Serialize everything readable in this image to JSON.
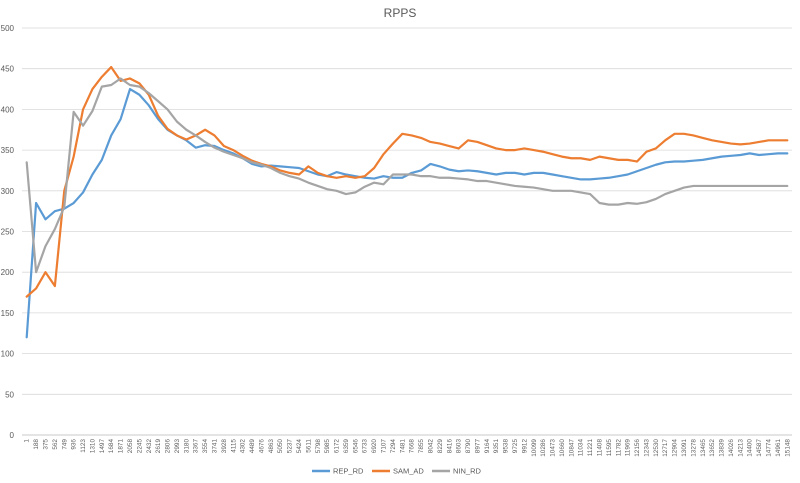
{
  "chart_data": {
    "type": "line",
    "title": "RPPS",
    "xlabel": "",
    "ylabel": "",
    "ylim": [
      0,
      500
    ],
    "yticks": [
      0,
      50,
      100,
      150,
      200,
      250,
      300,
      350,
      400,
      450,
      500
    ],
    "grid": "horizontal",
    "legend_position": "bottom",
    "categories": [
      "1",
      "188",
      "375",
      "562",
      "749",
      "936",
      "1123",
      "1310",
      "1497",
      "1684",
      "1871",
      "2058",
      "2245",
      "2432",
      "2619",
      "2806",
      "2993",
      "3180",
      "3367",
      "3554",
      "3741",
      "3928",
      "4115",
      "4302",
      "4489",
      "4676",
      "4863",
      "5050",
      "5237",
      "5424",
      "5611",
      "5798",
      "5985",
      "6172",
      "6359",
      "6546",
      "6733",
      "6920",
      "7107",
      "7294",
      "7481",
      "7668",
      "7855",
      "8042",
      "8229",
      "8416",
      "8603",
      "8790",
      "8977",
      "9164",
      "9351",
      "9538",
      "9725",
      "9912",
      "10099",
      "10286",
      "10473",
      "10660",
      "10847",
      "11034",
      "11221",
      "11408",
      "11595",
      "11782",
      "11969",
      "12156",
      "12343",
      "12530",
      "12717",
      "12904",
      "13091",
      "13278",
      "13465",
      "13652",
      "13839",
      "14026",
      "14213",
      "14400",
      "14587",
      "14774",
      "14961",
      "15148"
    ],
    "series": [
      {
        "name": "REP_RD",
        "color": "#5b9bd5",
        "values": [
          120,
          285,
          265,
          275,
          278,
          285,
          298,
          320,
          338,
          368,
          388,
          425,
          418,
          405,
          388,
          375,
          368,
          362,
          353,
          356,
          355,
          350,
          346,
          340,
          333,
          330,
          331,
          330,
          329,
          328,
          324,
          320,
          318,
          323,
          320,
          318,
          316,
          315,
          318,
          316,
          316,
          322,
          325,
          333,
          330,
          326,
          324,
          325,
          324,
          322,
          320,
          322,
          322,
          320,
          322,
          322,
          320,
          318,
          316,
          314,
          314,
          315,
          316,
          318,
          320,
          324,
          328,
          332,
          335,
          336,
          336,
          337,
          338,
          340,
          342,
          343,
          344,
          346,
          344,
          345,
          346,
          346
        ]
      },
      {
        "name": "SAM_AD",
        "color": "#ed7d31",
        "values": [
          170,
          180,
          200,
          183,
          300,
          342,
          400,
          425,
          440,
          452,
          435,
          438,
          432,
          418,
          392,
          376,
          368,
          363,
          368,
          375,
          368,
          355,
          350,
          343,
          337,
          333,
          330,
          325,
          322,
          320,
          330,
          322,
          318,
          316,
          318,
          316,
          318,
          328,
          345,
          358,
          370,
          368,
          365,
          360,
          358,
          355,
          352,
          362,
          360,
          356,
          352,
          350,
          350,
          352,
          350,
          348,
          345,
          342,
          340,
          340,
          338,
          342,
          340,
          338,
          338,
          336,
          348,
          352,
          362,
          370,
          370,
          368,
          365,
          362,
          360,
          358,
          357,
          358,
          360,
          362,
          362,
          362
        ]
      },
      {
        "name": "NIN_RD",
        "color": "#a5a5a5",
        "values": [
          335,
          200,
          232,
          253,
          280,
          397,
          380,
          398,
          428,
          430,
          438,
          430,
          428,
          420,
          410,
          400,
          385,
          375,
          368,
          360,
          353,
          348,
          344,
          340,
          335,
          332,
          328,
          322,
          318,
          315,
          310,
          306,
          302,
          300,
          296,
          298,
          305,
          310,
          308,
          320,
          320,
          320,
          318,
          318,
          316,
          316,
          315,
          314,
          312,
          312,
          310,
          308,
          306,
          305,
          304,
          302,
          300,
          300,
          300,
          298,
          296,
          285,
          283,
          283,
          285,
          284,
          286,
          290,
          296,
          300,
          304,
          306,
          306,
          306,
          306,
          306,
          306,
          306,
          306,
          306,
          306,
          306
        ]
      }
    ]
  }
}
